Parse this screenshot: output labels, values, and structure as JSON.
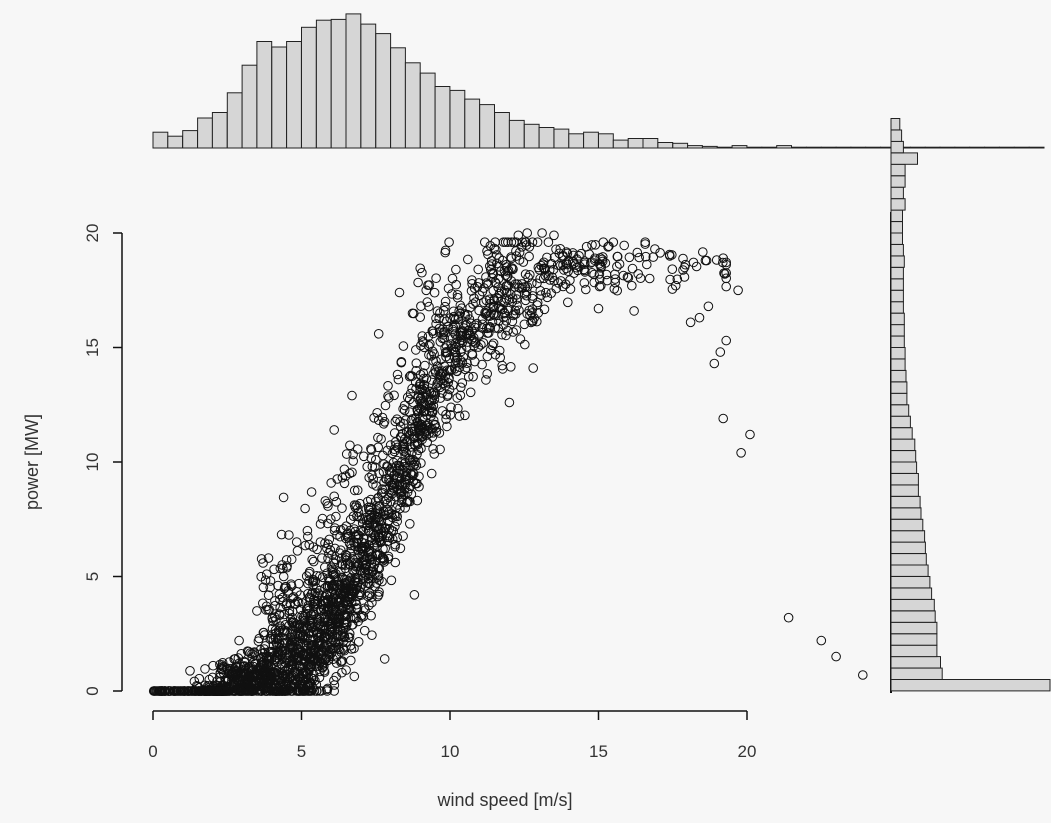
{
  "chart_data": [
    {
      "id": "scatter",
      "type": "scatter",
      "xlabel": "wind speed [m/s]",
      "ylabel": "power [MW]",
      "xlim": [
        0,
        20
      ],
      "ylim": [
        0,
        20
      ],
      "xticks": [
        0,
        5,
        10,
        15,
        20
      ],
      "yticks": [
        0,
        5,
        10,
        15,
        20
      ],
      "marker": "open-circle",
      "color": "#111111",
      "outliers": [
        {
          "x": 19.2,
          "y": 11.9
        },
        {
          "x": 20.1,
          "y": 11.2
        },
        {
          "x": 19.8,
          "y": 10.4
        },
        {
          "x": 19.1,
          "y": 14.8
        },
        {
          "x": 19.3,
          "y": 15.3
        },
        {
          "x": 18.9,
          "y": 14.3
        },
        {
          "x": 19.7,
          "y": 17.5
        },
        {
          "x": 21.4,
          "y": 3.2
        },
        {
          "x": 22.5,
          "y": 2.2
        },
        {
          "x": 23.0,
          "y": 1.5
        },
        {
          "x": 23.9,
          "y": 0.7
        },
        {
          "x": 18.6,
          "y": 18.8
        },
        {
          "x": 19.2,
          "y": 18.9
        },
        {
          "x": 18.4,
          "y": 16.3
        },
        {
          "x": 18.1,
          "y": 16.1
        },
        {
          "x": 18.7,
          "y": 16.8
        },
        {
          "x": 17.6,
          "y": 17.7
        },
        {
          "x": 17.9,
          "y": 18.5
        },
        {
          "x": 12.6,
          "y": 20.0
        },
        {
          "x": 13.1,
          "y": 20.0
        },
        {
          "x": 13.5,
          "y": 19.9
        },
        {
          "x": 11.8,
          "y": 19.6
        },
        {
          "x": 12.3,
          "y": 19.9
        },
        {
          "x": 7.6,
          "y": 15.6
        },
        {
          "x": 6.7,
          "y": 12.9
        },
        {
          "x": 6.1,
          "y": 11.4
        },
        {
          "x": 5.8,
          "y": 8.3
        },
        {
          "x": 5.2,
          "y": 7.0
        },
        {
          "x": 8.3,
          "y": 17.4
        },
        {
          "x": 9.2,
          "y": 17.5
        },
        {
          "x": 10.2,
          "y": 18.4
        },
        {
          "x": 2.3,
          "y": 1.0
        },
        {
          "x": 2.9,
          "y": 2.2
        },
        {
          "x": 3.5,
          "y": 3.5
        },
        {
          "x": 4.4,
          "y": 5.0
        },
        {
          "x": 7.8,
          "y": 1.4
        },
        {
          "x": 8.8,
          "y": 4.2
        },
        {
          "x": 12.8,
          "y": 14.1
        },
        {
          "x": 12.0,
          "y": 12.6
        },
        {
          "x": 16.2,
          "y": 16.6
        },
        {
          "x": 15.0,
          "y": 16.7
        },
        {
          "x": 16.9,
          "y": 19.3
        },
        {
          "x": 17.4,
          "y": 19.0
        },
        {
          "x": 14.6,
          "y": 19.4
        },
        {
          "x": 15.5,
          "y": 19.6
        }
      ]
    },
    {
      "id": "wind-speed-histogram",
      "type": "bar",
      "orientation": "vertical",
      "bin_start": 0,
      "bin_width": 0.5,
      "values": [
        20,
        15,
        22,
        38,
        45,
        70,
        105,
        135,
        128,
        135,
        153,
        162,
        163,
        170,
        157,
        145,
        127,
        108,
        95,
        78,
        73,
        62,
        55,
        45,
        35,
        30,
        26,
        24,
        18,
        20,
        18,
        10,
        12,
        12,
        7,
        6,
        3,
        2,
        1,
        3,
        1,
        1,
        3,
        1,
        1,
        1,
        1,
        1,
        1,
        1,
        1,
        1,
        1,
        1,
        1,
        1,
        1,
        1,
        1,
        1
      ],
      "ylim": [
        0,
        180
      ]
    },
    {
      "id": "power-histogram",
      "type": "bar",
      "orientation": "horizontal",
      "bin_start": 0,
      "bin_width": 0.5,
      "values": [
        180,
        58,
        56,
        52,
        52,
        52,
        50,
        49,
        46,
        44,
        42,
        40,
        39,
        38,
        36,
        34,
        33,
        31,
        31,
        29,
        28,
        27,
        24,
        22,
        20,
        18,
        18,
        17,
        16,
        16,
        15,
        15,
        15,
        14,
        14,
        14,
        14,
        15,
        14,
        13,
        13,
        13,
        16,
        14,
        16,
        16,
        30,
        14,
        12,
        10
      ],
      "xlim": [
        0,
        180
      ]
    }
  ]
}
